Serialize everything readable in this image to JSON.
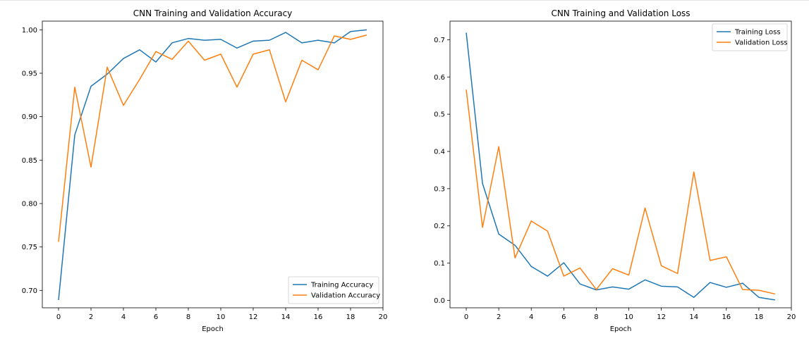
{
  "chart_data": [
    {
      "type": "line",
      "title": "CNN Training and Validation Accuracy",
      "xlabel": "Epoch",
      "ylabel": "",
      "xlim": [
        -1,
        20
      ],
      "ylim": [
        0.68,
        1.01
      ],
      "xticks": [
        0,
        2,
        4,
        6,
        8,
        10,
        12,
        14,
        16,
        18,
        20
      ],
      "yticks": [
        0.7,
        0.75,
        0.8,
        0.85,
        0.9,
        0.95,
        1.0
      ],
      "ytick_labels": [
        "0.70",
        "0.75",
        "0.80",
        "0.85",
        "0.90",
        "0.95",
        "1.00"
      ],
      "grid": false,
      "legend_position": "lower-right",
      "x": [
        0,
        1,
        2,
        3,
        4,
        5,
        6,
        7,
        8,
        9,
        10,
        11,
        12,
        13,
        14,
        15,
        16,
        17,
        18,
        19
      ],
      "series": [
        {
          "name": "Training Accuracy",
          "color": "#1f77b4",
          "values": [
            0.689,
            0.879,
            0.935,
            0.949,
            0.967,
            0.977,
            0.963,
            0.985,
            0.99,
            0.988,
            0.989,
            0.979,
            0.987,
            0.988,
            0.997,
            0.985,
            0.988,
            0.985,
            0.998,
            1.0
          ]
        },
        {
          "name": "Validation Accuracy",
          "color": "#ff7f0e",
          "values": [
            0.756,
            0.934,
            0.842,
            0.957,
            0.913,
            0.943,
            0.975,
            0.966,
            0.987,
            0.965,
            0.972,
            0.934,
            0.972,
            0.977,
            0.917,
            0.965,
            0.954,
            0.993,
            0.989,
            0.994
          ]
        }
      ]
    },
    {
      "type": "line",
      "title": "CNN Training and Validation Loss",
      "xlabel": "Epoch",
      "ylabel": "",
      "xlim": [
        -1,
        20
      ],
      "ylim": [
        -0.02,
        0.75
      ],
      "xticks": [
        0,
        2,
        4,
        6,
        8,
        10,
        12,
        14,
        16,
        18,
        20
      ],
      "yticks": [
        0.0,
        0.1,
        0.2,
        0.3,
        0.4,
        0.5,
        0.6,
        0.7
      ],
      "ytick_labels": [
        "0.0",
        "0.1",
        "0.2",
        "0.3",
        "0.4",
        "0.5",
        "0.6",
        "0.7"
      ],
      "grid": false,
      "legend_position": "upper-right",
      "x": [
        0,
        1,
        2,
        3,
        4,
        5,
        6,
        7,
        8,
        9,
        10,
        11,
        12,
        13,
        14,
        15,
        16,
        17,
        18,
        19
      ],
      "series": [
        {
          "name": "Training Loss",
          "color": "#1f77b4",
          "values": [
            0.719,
            0.314,
            0.178,
            0.148,
            0.091,
            0.065,
            0.101,
            0.044,
            0.028,
            0.036,
            0.03,
            0.055,
            0.038,
            0.036,
            0.008,
            0.048,
            0.035,
            0.046,
            0.008,
            0.001
          ]
        },
        {
          "name": "Validation Loss",
          "color": "#ff7f0e",
          "values": [
            0.566,
            0.196,
            0.413,
            0.114,
            0.213,
            0.186,
            0.065,
            0.087,
            0.029,
            0.085,
            0.068,
            0.248,
            0.093,
            0.072,
            0.345,
            0.107,
            0.117,
            0.029,
            0.027,
            0.017
          ]
        }
      ]
    }
  ]
}
